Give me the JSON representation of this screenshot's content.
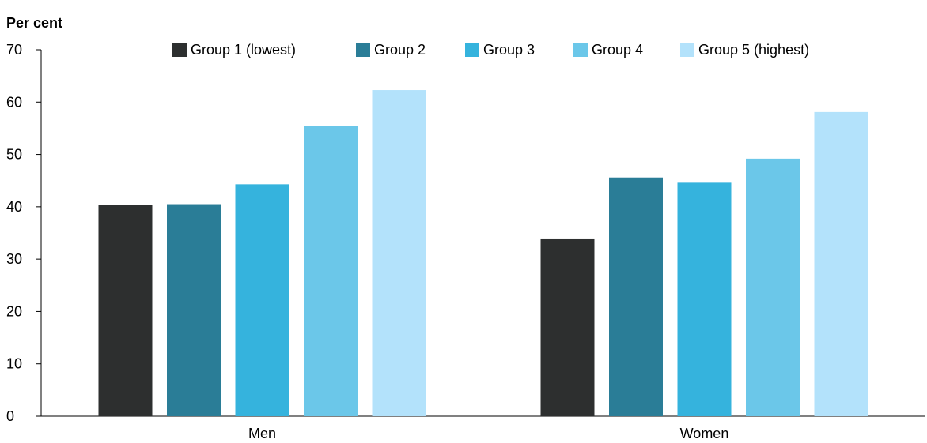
{
  "chart_data": {
    "type": "bar",
    "ylabel": "Per cent",
    "ylim": [
      0,
      70
    ],
    "yticks": [
      "0",
      "10",
      "20",
      "30",
      "40",
      "50",
      "60",
      "70"
    ],
    "categories": [
      "Men",
      "Women"
    ],
    "series": [
      {
        "name": "Group 1 (lowest)",
        "color": "#2d2f2f",
        "values": [
          40.4,
          33.8
        ]
      },
      {
        "name": "Group 2",
        "color": "#2a7d97",
        "values": [
          40.5,
          45.6
        ]
      },
      {
        "name": "Group 3",
        "color": "#35b3dd",
        "values": [
          44.3,
          44.6
        ]
      },
      {
        "name": "Group 4",
        "color": "#6bc7e9",
        "values": [
          55.5,
          49.2
        ]
      },
      {
        "name": "Group 5 (highest)",
        "color": "#b3e2fb",
        "values": [
          62.3,
          58.1
        ]
      }
    ],
    "legend_position": "top",
    "grid": false
  }
}
